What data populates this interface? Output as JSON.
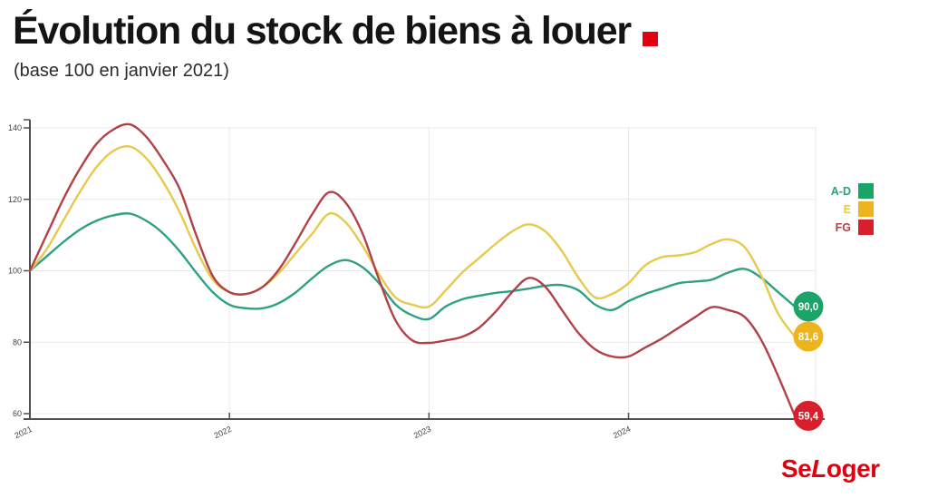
{
  "title": "Évolution du stock de biens à louer",
  "subtitle": "(base 100 en janvier 2021)",
  "accent_color": "#e1000f",
  "brand": {
    "se": "Se",
    "l": "L",
    "oger": "oger",
    "color": "#e1000f"
  },
  "chart_data": {
    "type": "line",
    "title": "Évolution du stock de biens à louer",
    "subtitle": "(base 100 en janvier 2021)",
    "x_range": "monthly, Jan 2021 to Nov 2024",
    "x_tick_labels": [
      "2021",
      "2022",
      "2023",
      "2024"
    ],
    "x_tick_months": [
      0,
      12,
      24,
      36
    ],
    "yticks": [
      60,
      80,
      100,
      120,
      140
    ],
    "ylim": [
      60,
      141
    ],
    "grid": true,
    "legend_position": "right",
    "axis_color": "#4f4f4f",
    "grid_color": "#e9e9e9",
    "tick_label_color": "#3f3f3f",
    "series": [
      {
        "name": "A-D",
        "color": "#2ea183",
        "badge_color": "#1ba368",
        "end_label": "90,0",
        "end_value": 90.0,
        "values": [
          100,
          104,
          108,
          111.5,
          114,
          115.5,
          116,
          114,
          110.5,
          105.5,
          99.5,
          94,
          90.5,
          89.5,
          89.5,
          91,
          94,
          98,
          101.5,
          103,
          101,
          96.5,
          90.5,
          87.5,
          86.5,
          90,
          92,
          93,
          93.8,
          94.3,
          95,
          95.8,
          96,
          94.5,
          90.5,
          89,
          91.5,
          93.5,
          95,
          96.5,
          97,
          97.5,
          99.5,
          100.5,
          98,
          94,
          90
        ]
      },
      {
        "name": "E",
        "color": "#e6c94d",
        "badge_color": "#eeb41e",
        "end_label": "81,6",
        "end_value": 81.6,
        "values": [
          100,
          106,
          114,
          122,
          129,
          133.5,
          134.8,
          131.5,
          125,
          116.5,
          106,
          97.5,
          94,
          93.5,
          95.5,
          99.5,
          105,
          110.5,
          116,
          113.5,
          107,
          99,
          92.5,
          90.5,
          90,
          94.5,
          99.5,
          103.5,
          107.5,
          111,
          113,
          111,
          105.5,
          98,
          92.5,
          93.5,
          96.5,
          101.5,
          103.8,
          104.3,
          105.2,
          107.5,
          108.8,
          106.5,
          98.5,
          88,
          81.6
        ]
      },
      {
        "name": "FG",
        "color": "#b24049",
        "badge_color": "#d8202c",
        "end_label": "59,4",
        "end_value": 59.4,
        "values": [
          100,
          110,
          120,
          128.5,
          135.5,
          139.5,
          141,
          137.5,
          131,
          123,
          110,
          98.5,
          94,
          93.5,
          95.5,
          100.5,
          108,
          116,
          122,
          119,
          110.5,
          97.5,
          86,
          80.5,
          79.8,
          80.5,
          81.5,
          84,
          88.5,
          94,
          98,
          95.5,
          89,
          82.5,
          78,
          76,
          76,
          78.5,
          81,
          84,
          87,
          89.8,
          89,
          87,
          80.5,
          70.5,
          59.4
        ]
      }
    ]
  }
}
